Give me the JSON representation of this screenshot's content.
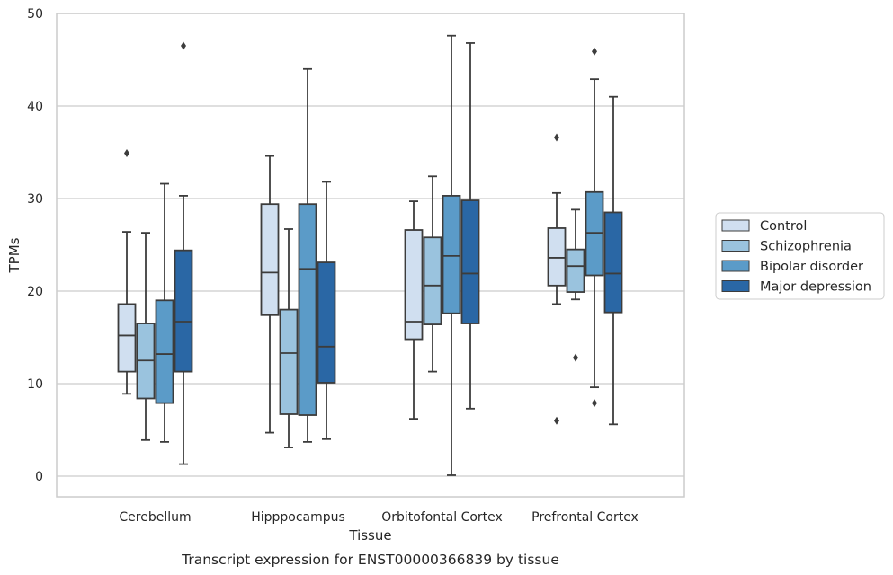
{
  "caption": "Transcript expression for ENST00000366839 by tissue",
  "chart_data": {
    "type": "box",
    "xlabel": "Tissue",
    "ylabel": "TPMs",
    "ylim": [
      -2.2,
      50
    ],
    "yticks": [
      0,
      10,
      20,
      30,
      40,
      50
    ],
    "grid": "y",
    "legend_position": "right",
    "categories": [
      "Cerebellum",
      "Hipppocampus",
      "Orbitofontal Cortex",
      "Prefrontal Cortex"
    ],
    "series": [
      {
        "name": "Control",
        "color": "#d0dff0",
        "boxes": [
          {
            "whislo": 8.9,
            "q1": 11.3,
            "med": 15.2,
            "q3": 18.6,
            "whishi": 26.4,
            "fliers": [
              34.9
            ]
          },
          {
            "whislo": 4.7,
            "q1": 17.4,
            "med": 22.0,
            "q3": 29.4,
            "whishi": 34.6,
            "fliers": []
          },
          {
            "whislo": 6.2,
            "q1": 14.8,
            "med": 16.7,
            "q3": 26.6,
            "whishi": 29.7,
            "fliers": []
          },
          {
            "whislo": 18.6,
            "q1": 20.6,
            "med": 23.6,
            "q3": 26.8,
            "whishi": 30.6,
            "fliers": [
              36.6,
              6.0
            ]
          }
        ]
      },
      {
        "name": "Schizophrenia",
        "color": "#9ac3de",
        "boxes": [
          {
            "whislo": 3.9,
            "q1": 8.4,
            "med": 12.5,
            "q3": 16.5,
            "whishi": 26.3,
            "fliers": []
          },
          {
            "whislo": 3.1,
            "q1": 6.7,
            "med": 13.3,
            "q3": 18.0,
            "whishi": 26.7,
            "fliers": []
          },
          {
            "whislo": 11.3,
            "q1": 16.4,
            "med": 20.6,
            "q3": 25.8,
            "whishi": 32.4,
            "fliers": []
          },
          {
            "whislo": 19.1,
            "q1": 19.9,
            "med": 22.7,
            "q3": 24.5,
            "whishi": 28.8,
            "fliers": [
              12.8
            ]
          }
        ]
      },
      {
        "name": "Bipolar disorder",
        "color": "#5b9bc8",
        "boxes": [
          {
            "whislo": 3.7,
            "q1": 7.9,
            "med": 13.2,
            "q3": 19.0,
            "whishi": 31.6,
            "fliers": []
          },
          {
            "whislo": 3.7,
            "q1": 6.6,
            "med": 22.4,
            "q3": 29.4,
            "whishi": 44.0,
            "fliers": []
          },
          {
            "whislo": 0.1,
            "q1": 17.6,
            "med": 23.8,
            "q3": 30.3,
            "whishi": 47.6,
            "fliers": []
          },
          {
            "whislo": 9.6,
            "q1": 21.7,
            "med": 26.3,
            "q3": 30.7,
            "whishi": 42.9,
            "fliers": [
              45.9,
              7.9
            ]
          }
        ]
      },
      {
        "name": "Major depression",
        "color": "#2a67a5",
        "boxes": [
          {
            "whislo": 1.3,
            "q1": 11.3,
            "med": 16.7,
            "q3": 24.4,
            "whishi": 30.3,
            "fliers": [
              46.5
            ]
          },
          {
            "whislo": 4.0,
            "q1": 10.1,
            "med": 14.0,
            "q3": 23.1,
            "whishi": 31.8,
            "fliers": []
          },
          {
            "whislo": 7.3,
            "q1": 16.5,
            "med": 21.9,
            "q3": 29.8,
            "whishi": 46.8,
            "fliers": []
          },
          {
            "whislo": 5.6,
            "q1": 17.7,
            "med": 21.9,
            "q3": 28.5,
            "whishi": 41.0,
            "fliers": []
          }
        ]
      }
    ]
  }
}
